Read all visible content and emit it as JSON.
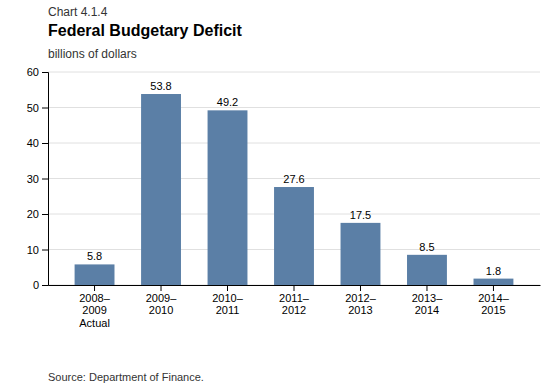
{
  "chart_data": {
    "type": "bar",
    "title": "Federal Budgetary Deficit",
    "ylabel": "billions of dollars",
    "annotations": [
      "Chart 4.1.4",
      "Source: Department of Finance."
    ],
    "categories": [
      "2008–\n2009\nActual",
      "2009–\n2010",
      "2010–\n2011",
      "2011–\n2012",
      "2012–\n2013",
      "2013–\n2014",
      "2014–\n2015"
    ],
    "values": [
      5.8,
      53.8,
      49.2,
      27.6,
      17.5,
      8.5,
      1.8
    ],
    "color": "#5b7fa6",
    "ylim": [
      0,
      60
    ],
    "yticks": [
      0,
      10,
      20,
      30,
      40,
      50,
      60
    ],
    "grid": true,
    "data_labels": true
  }
}
